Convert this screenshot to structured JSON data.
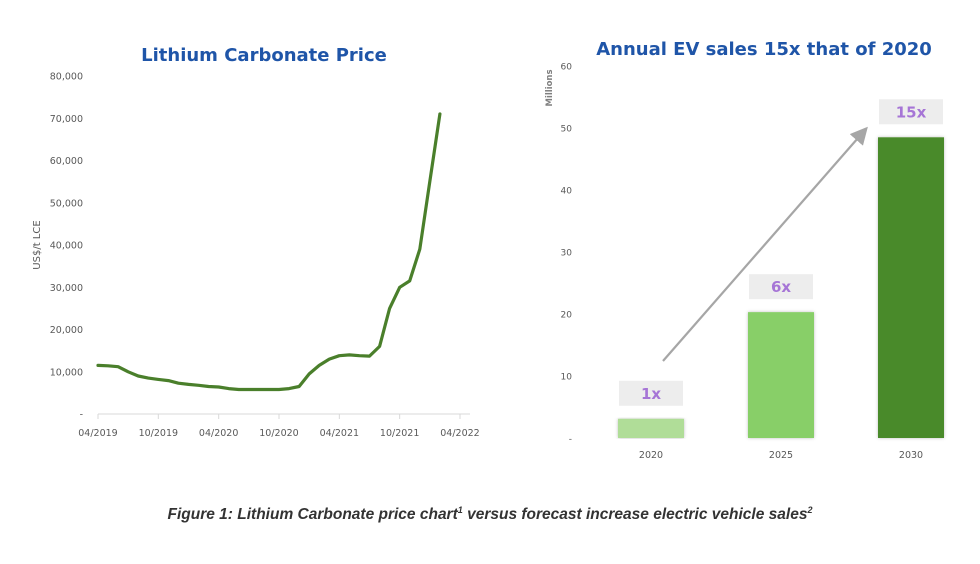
{
  "chart_data": [
    {
      "type": "line",
      "title": "Lithium Carbonate Price",
      "xlabel": "",
      "ylabel": "US$/t LCE",
      "ylim": [
        0,
        80000
      ],
      "yticks": [
        0,
        10000,
        20000,
        30000,
        40000,
        50000,
        60000,
        70000,
        80000
      ],
      "ytick_labels": [
        "-",
        "10,000",
        "20,000",
        "30,000",
        "40,000",
        "50,000",
        "60,000",
        "70,000",
        "80,000"
      ],
      "xtick_labels": [
        "04/2019",
        "10/2019",
        "04/2020",
        "10/2020",
        "04/2021",
        "10/2021",
        "04/2022"
      ],
      "x_unit": "months since 04/2019",
      "xlim": [
        0,
        36
      ],
      "grid": false,
      "series": [
        {
          "name": "Lithium Carbonate Price",
          "color": "#4a7f2b",
          "x": [
            0,
            1,
            2,
            3,
            4,
            5,
            6,
            7,
            8,
            9,
            10,
            11,
            12,
            13,
            14,
            15,
            16,
            17,
            18,
            19,
            20,
            21,
            22,
            23,
            24,
            25,
            26,
            27,
            28,
            29,
            30,
            31,
            32,
            33,
            34
          ],
          "y": [
            11500,
            11400,
            11200,
            10000,
            9000,
            8500,
            8200,
            7900,
            7300,
            7000,
            6800,
            6500,
            6400,
            6000,
            5800,
            5800,
            5800,
            5800,
            5800,
            6000,
            6500,
            9500,
            11500,
            13000,
            13800,
            14000,
            13800,
            13700,
            16000,
            25000,
            30000,
            31500,
            39000,
            55000,
            71000
          ]
        }
      ]
    },
    {
      "type": "bar",
      "title": "Annual EV sales 15x that of 2020",
      "xlabel": "",
      "ylabel": "Millions",
      "ylim": [
        0,
        60
      ],
      "yticks": [
        0,
        10,
        20,
        30,
        40,
        50,
        60
      ],
      "ytick_labels": [
        "-",
        "10",
        "20",
        "30",
        "40",
        "50",
        "60"
      ],
      "categories": [
        "2020",
        "2025",
        "2030"
      ],
      "values": [
        3.1,
        20.3,
        48.5
      ],
      "bar_colors": [
        "#b0dd98",
        "#88cf68",
        "#4a8a2a"
      ],
      "annotations": [
        "1x",
        "6x",
        "15x"
      ],
      "annotation_color": "#a675d6",
      "arrow": "trend arrow from 2020 to 2030",
      "grid": false
    }
  ],
  "caption": {
    "text_a": "Figure 1: Lithium Carbonate price chart",
    "sup_a": "1",
    "text_b": " versus forecast increase electric vehicle sales",
    "sup_b": "2"
  }
}
